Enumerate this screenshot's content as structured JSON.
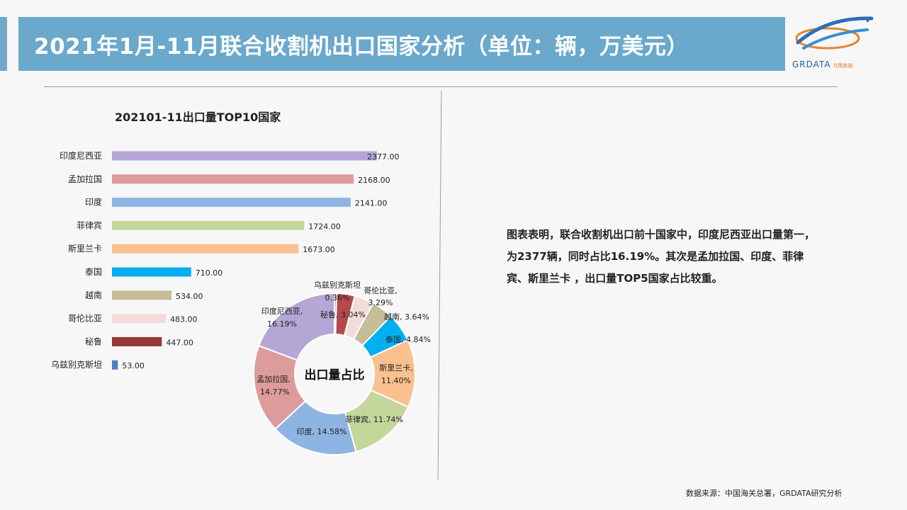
{
  "header": {
    "title": "2021年1月-11月联合收割机出口国家分析（单位：辆，万美元）",
    "logo_text": "GRDATA",
    "logo_sub": "共策数据"
  },
  "chart_data": [
    {
      "type": "bar",
      "orientation": "horizontal",
      "title": "202101-11出口量TOP10国家",
      "categories": [
        "印度尼西亚",
        "孟加拉国",
        "印度",
        "菲律宾",
        "斯里兰卡",
        "泰国",
        "越南",
        "哥伦比亚",
        "秘鲁",
        "乌兹别克斯坦"
      ],
      "values": [
        2377,
        2168,
        2141,
        1724,
        1673,
        710,
        534,
        483,
        447,
        53
      ],
      "value_labels": [
        "2377.00",
        "2168.00",
        "2141.00",
        "1724.00",
        "1673.00",
        "710.00",
        "534.00",
        "483.00",
        "447.00",
        "53.00"
      ],
      "colors": [
        "#b4a7d6",
        "#dd9b9b",
        "#8eb4e3",
        "#c4d79b",
        "#fac090",
        "#00b0f0",
        "#c4bd97",
        "#f2dcdb",
        "#953735",
        "#4f81bd"
      ],
      "xlim": [
        0,
        2500
      ],
      "grid": false,
      "legend": "none"
    },
    {
      "type": "pie",
      "variant": "donut",
      "center_label": "出口量占比",
      "slices": [
        {
          "label": "乌兹别克斯坦",
          "value": 0.36,
          "text": "0.36%",
          "color": "#4f81bd"
        },
        {
          "label": "秘鲁",
          "value": 3.04,
          "text": "3.04%",
          "color": "#b5494b"
        },
        {
          "label": "哥伦比亚",
          "value": 3.29,
          "text": "3.29%",
          "color": "#f2dcdb"
        },
        {
          "label": "越南",
          "value": 3.64,
          "text": "3.64%",
          "color": "#c4bd97"
        },
        {
          "label": "泰国",
          "value": 4.84,
          "text": "4.84%",
          "color": "#00b0f0"
        },
        {
          "label": "斯里兰卡",
          "value": 11.4,
          "text": "11.40%",
          "color": "#fac090"
        },
        {
          "label": "菲律宾",
          "value": 11.74,
          "text": "11.74%",
          "color": "#c4d79b"
        },
        {
          "label": "印度",
          "value": 14.58,
          "text": "14.58%",
          "color": "#8eb4e3"
        },
        {
          "label": "孟加拉国",
          "value": 14.77,
          "text": "14.77%",
          "color": "#dd9b9b"
        },
        {
          "label": "印度尼西亚",
          "value": 16.19,
          "text": "16.19%",
          "color": "#b4a7d6"
        }
      ],
      "legend": "none"
    }
  ],
  "description": "图表表明，联合收割机出口前十国家中，印度尼西亚出口量第一，为2377辆，同时占比16.19%。其次是孟加拉国、印度、菲律宾、斯里兰卡 ，出口量TOP5国家占比较重。",
  "source": "数据来源：中国海关总署，GRDATA研究分析"
}
